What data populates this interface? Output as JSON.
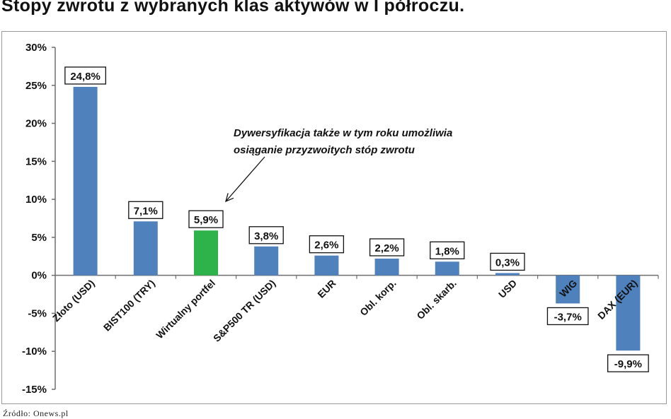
{
  "title": "Stopy zwrotu z wybranych klas aktywów w I półroczu.",
  "source": "Źródło: Onews.pl",
  "chart_data": {
    "type": "bar",
    "categories": [
      "Złoto (USD)",
      "BIST100 (TRY)",
      "Wirtualny portfel",
      "S&P500 TR (USD)",
      "EUR",
      "Obl. korp.",
      "Obl. skarb.",
      "USD",
      "WIG",
      "DAX (EUR)"
    ],
    "values": [
      24.8,
      7.1,
      5.9,
      3.8,
      2.6,
      2.2,
      1.8,
      0.3,
      -3.7,
      -9.9
    ],
    "data_labels": [
      "24,8%",
      "7,1%",
      "5,9%",
      "3,8%",
      "2,6%",
      "2,2%",
      "1,8%",
      "0,3%",
      "-3,7%",
      "-9,9%"
    ],
    "ylim": [
      -15,
      30
    ],
    "yticks": [
      30,
      25,
      20,
      15,
      10,
      5,
      0,
      -5,
      -10,
      -15
    ],
    "ytick_labels": [
      "30%",
      "25%",
      "20%",
      "15%",
      "10%",
      "5%",
      "0%",
      "-5%",
      "-10%",
      "-15%"
    ],
    "colors": {
      "default": "#4f81bd",
      "highlight": "#2db34a"
    },
    "highlight_index": 2,
    "annotation": {
      "lines": [
        "Dywersyfikacja także w tym roku umożliwia",
        "osiąganie przyzwoitych stóp zwrotu"
      ],
      "points_to_index": 2
    },
    "grid": false,
    "legend": "none"
  }
}
